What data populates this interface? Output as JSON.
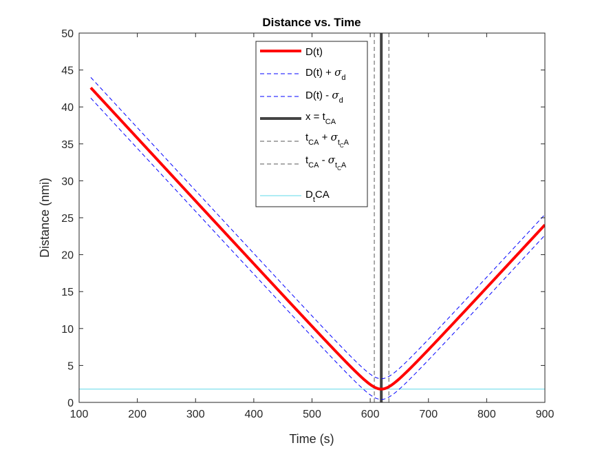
{
  "chart_data": {
    "type": "line",
    "title": "Distance vs. Time",
    "xlabel": "Time (s)",
    "ylabel": "Distance (nmi)",
    "xlim": [
      100,
      900
    ],
    "ylim": [
      0,
      50
    ],
    "xticks": [
      100,
      200,
      300,
      400,
      500,
      600,
      700,
      800,
      900
    ],
    "yticks": [
      0,
      5,
      10,
      15,
      20,
      25,
      30,
      35,
      40,
      45,
      50
    ],
    "grid": false,
    "legend_location": "top-center",
    "legend": [
      {
        "label": "D(t)",
        "series": "D"
      },
      {
        "label": "D(t) + σd",
        "series": "D_plus"
      },
      {
        "label": "D(t) - σd",
        "series": "D_minus"
      },
      {
        "label": "x = tCA",
        "series": "tCA"
      },
      {
        "label": "tCA + σtCA",
        "series": "tCA_plus"
      },
      {
        "label": "tCA - σtCA",
        "series": "tCA_minus"
      },
      {
        "label": "DtCA",
        "series": "DtCA"
      }
    ],
    "curve_model": {
      "t_ca": 619,
      "d_ca": 1.8,
      "speed_nmi_per_s": 0.0853,
      "sigma_d": 1.4,
      "t_start": 120,
      "t_end": 900
    },
    "series": [
      {
        "id": "D",
        "color": "#ff0000",
        "style": "solid",
        "width": 4,
        "x": [
          120,
          200,
          300,
          400,
          500,
          560,
          600,
          619,
          640,
          700,
          800,
          900
        ],
        "y": [
          47.7,
          40.8,
          32.3,
          23.8,
          15.2,
          10.1,
          4.0,
          1.8,
          2.5,
          7.1,
          15.6,
          26.7
        ]
      },
      {
        "id": "D_plus",
        "color": "#0000ff",
        "style": "dashed",
        "width": 1,
        "offset": 1.4
      },
      {
        "id": "D_minus",
        "color": "#0000ff",
        "style": "dashed",
        "width": 1,
        "offset": -1.4
      },
      {
        "id": "tCA",
        "color": "#444444",
        "style": "solid",
        "width": 4,
        "vertical_x": 619
      },
      {
        "id": "tCA_plus",
        "color": "#555555",
        "style": "dashed",
        "width": 1,
        "vertical_x": 632
      },
      {
        "id": "tCA_minus",
        "color": "#555555",
        "style": "dashed",
        "width": 1,
        "vertical_x": 607
      },
      {
        "id": "DtCA",
        "color": "#5ed8e8",
        "style": "solid",
        "width": 1,
        "horizontal_y": 1.8
      }
    ]
  }
}
